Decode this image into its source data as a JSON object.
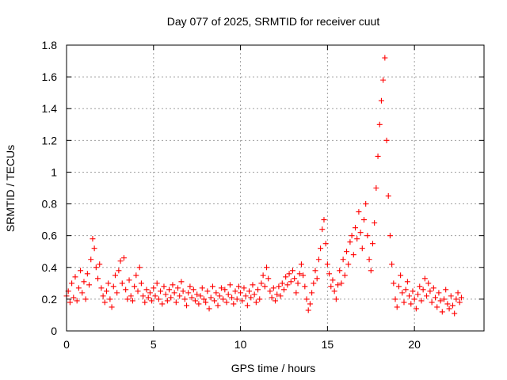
{
  "chart_data": {
    "type": "scatter",
    "title": "Day 077 of 2025, SRMTID for receiver cuut",
    "xlabel": "GPS time / hours",
    "ylabel": "SRMTID / TECUs",
    "xlim": [
      0,
      24
    ],
    "ylim": [
      0,
      1.8
    ],
    "xticks": [
      0,
      5,
      10,
      15,
      20
    ],
    "yticks": [
      0,
      0.2,
      0.4,
      0.6,
      0.8,
      1,
      1.2,
      1.4,
      1.6,
      1.8
    ],
    "xtick_labels": [
      "0",
      "5",
      "10",
      "15",
      "20"
    ],
    "ytick_labels": [
      "0",
      "0.2",
      "0.4",
      "0.6",
      "0.8",
      "1",
      "1.2",
      "1.4",
      "1.6",
      "1.8"
    ],
    "grid": true,
    "marker": "+",
    "color": "#ff0000",
    "series": [
      {
        "name": "SRMTID",
        "points": [
          [
            0.0,
            0.22
          ],
          [
            0.1,
            0.25
          ],
          [
            0.2,
            0.18
          ],
          [
            0.3,
            0.3
          ],
          [
            0.4,
            0.21
          ],
          [
            0.5,
            0.34
          ],
          [
            0.6,
            0.19
          ],
          [
            0.7,
            0.27
          ],
          [
            0.8,
            0.38
          ],
          [
            0.9,
            0.24
          ],
          [
            1.0,
            0.31
          ],
          [
            1.1,
            0.2
          ],
          [
            1.2,
            0.36
          ],
          [
            1.3,
            0.29
          ],
          [
            1.4,
            0.45
          ],
          [
            1.5,
            0.58
          ],
          [
            1.6,
            0.52
          ],
          [
            1.7,
            0.4
          ],
          [
            1.8,
            0.33
          ],
          [
            1.9,
            0.42
          ],
          [
            2.0,
            0.27
          ],
          [
            2.1,
            0.22
          ],
          [
            2.2,
            0.18
          ],
          [
            2.3,
            0.25
          ],
          [
            2.4,
            0.3
          ],
          [
            2.5,
            0.2
          ],
          [
            2.6,
            0.15
          ],
          [
            2.7,
            0.28
          ],
          [
            2.8,
            0.35
          ],
          [
            2.9,
            0.24
          ],
          [
            3.0,
            0.38
          ],
          [
            3.1,
            0.44
          ],
          [
            3.2,
            0.3
          ],
          [
            3.3,
            0.46
          ],
          [
            3.4,
            0.26
          ],
          [
            3.5,
            0.2
          ],
          [
            3.6,
            0.32
          ],
          [
            3.7,
            0.22
          ],
          [
            3.8,
            0.19
          ],
          [
            3.9,
            0.28
          ],
          [
            4.0,
            0.35
          ],
          [
            4.1,
            0.25
          ],
          [
            4.2,
            0.4
          ],
          [
            4.3,
            0.3
          ],
          [
            4.4,
            0.22
          ],
          [
            4.5,
            0.18
          ],
          [
            4.6,
            0.26
          ],
          [
            4.7,
            0.21
          ],
          [
            4.8,
            0.24
          ],
          [
            4.9,
            0.19
          ],
          [
            5.0,
            0.27
          ],
          [
            5.1,
            0.22
          ],
          [
            5.2,
            0.3
          ],
          [
            5.3,
            0.2
          ],
          [
            5.4,
            0.25
          ],
          [
            5.5,
            0.17
          ],
          [
            5.6,
            0.28
          ],
          [
            5.7,
            0.23
          ],
          [
            5.8,
            0.19
          ],
          [
            5.9,
            0.26
          ],
          [
            6.0,
            0.21
          ],
          [
            6.1,
            0.29
          ],
          [
            6.2,
            0.24
          ],
          [
            6.3,
            0.18
          ],
          [
            6.4,
            0.27
          ],
          [
            6.5,
            0.22
          ],
          [
            6.6,
            0.31
          ],
          [
            6.7,
            0.25
          ],
          [
            6.8,
            0.2
          ],
          [
            6.9,
            0.16
          ],
          [
            7.0,
            0.24
          ],
          [
            7.1,
            0.28
          ],
          [
            7.2,
            0.21
          ],
          [
            7.3,
            0.26
          ],
          [
            7.4,
            0.19
          ],
          [
            7.5,
            0.23
          ],
          [
            7.6,
            0.17
          ],
          [
            7.7,
            0.22
          ],
          [
            7.8,
            0.27
          ],
          [
            7.9,
            0.2
          ],
          [
            8.0,
            0.18
          ],
          [
            8.1,
            0.25
          ],
          [
            8.2,
            0.14
          ],
          [
            8.3,
            0.21
          ],
          [
            8.4,
            0.28
          ],
          [
            8.5,
            0.19
          ],
          [
            8.6,
            0.24
          ],
          [
            8.7,
            0.16
          ],
          [
            8.8,
            0.22
          ],
          [
            8.9,
            0.27
          ],
          [
            9.0,
            0.2
          ],
          [
            9.1,
            0.26
          ],
          [
            9.2,
            0.18
          ],
          [
            9.3,
            0.23
          ],
          [
            9.4,
            0.29
          ],
          [
            9.5,
            0.21
          ],
          [
            9.6,
            0.17
          ],
          [
            9.7,
            0.25
          ],
          [
            9.8,
            0.2
          ],
          [
            9.9,
            0.28
          ],
          [
            10.0,
            0.24
          ],
          [
            10.1,
            0.19
          ],
          [
            10.2,
            0.27
          ],
          [
            10.3,
            0.22
          ],
          [
            10.4,
            0.16
          ],
          [
            10.5,
            0.25
          ],
          [
            10.6,
            0.21
          ],
          [
            10.7,
            0.29
          ],
          [
            10.8,
            0.23
          ],
          [
            10.9,
            0.18
          ],
          [
            11.0,
            0.26
          ],
          [
            11.1,
            0.2
          ],
          [
            11.2,
            0.3
          ],
          [
            11.3,
            0.35
          ],
          [
            11.4,
            0.28
          ],
          [
            11.5,
            0.4
          ],
          [
            11.6,
            0.33
          ],
          [
            11.7,
            0.25
          ],
          [
            11.8,
            0.21
          ],
          [
            11.9,
            0.27
          ],
          [
            12.0,
            0.19
          ],
          [
            12.1,
            0.23
          ],
          [
            12.2,
            0.28
          ],
          [
            12.3,
            0.22
          ],
          [
            12.4,
            0.3
          ],
          [
            12.5,
            0.26
          ],
          [
            12.6,
            0.34
          ],
          [
            12.7,
            0.29
          ],
          [
            12.8,
            0.36
          ],
          [
            12.9,
            0.31
          ],
          [
            13.0,
            0.38
          ],
          [
            13.1,
            0.33
          ],
          [
            13.2,
            0.24
          ],
          [
            13.3,
            0.3
          ],
          [
            13.4,
            0.36
          ],
          [
            13.5,
            0.42
          ],
          [
            13.6,
            0.35
          ],
          [
            13.7,
            0.28
          ],
          [
            13.8,
            0.2
          ],
          [
            13.9,
            0.13
          ],
          [
            14.0,
            0.17
          ],
          [
            14.1,
            0.24
          ],
          [
            14.2,
            0.3
          ],
          [
            14.3,
            0.38
          ],
          [
            14.4,
            0.33
          ],
          [
            14.5,
            0.45
          ],
          [
            14.6,
            0.52
          ],
          [
            14.7,
            0.64
          ],
          [
            14.8,
            0.7
          ],
          [
            14.9,
            0.55
          ],
          [
            15.0,
            0.42
          ],
          [
            15.1,
            0.36
          ],
          [
            15.2,
            0.28
          ],
          [
            15.3,
            0.32
          ],
          [
            15.4,
            0.25
          ],
          [
            15.5,
            0.2
          ],
          [
            15.6,
            0.29
          ],
          [
            15.7,
            0.38
          ],
          [
            15.8,
            0.3
          ],
          [
            15.9,
            0.45
          ],
          [
            16.0,
            0.35
          ],
          [
            16.1,
            0.5
          ],
          [
            16.2,
            0.42
          ],
          [
            16.3,
            0.56
          ],
          [
            16.4,
            0.6
          ],
          [
            16.5,
            0.48
          ],
          [
            16.6,
            0.65
          ],
          [
            16.7,
            0.58
          ],
          [
            16.8,
            0.75
          ],
          [
            16.9,
            0.62
          ],
          [
            17.0,
            0.52
          ],
          [
            17.1,
            0.7
          ],
          [
            17.2,
            0.8
          ],
          [
            17.3,
            0.6
          ],
          [
            17.4,
            0.45
          ],
          [
            17.5,
            0.38
          ],
          [
            17.6,
            0.55
          ],
          [
            17.7,
            0.68
          ],
          [
            17.8,
            0.9
          ],
          [
            17.9,
            1.1
          ],
          [
            18.0,
            1.3
          ],
          [
            18.1,
            1.45
          ],
          [
            18.2,
            1.58
          ],
          [
            18.3,
            1.72
          ],
          [
            18.4,
            1.2
          ],
          [
            18.5,
            0.85
          ],
          [
            18.6,
            0.6
          ],
          [
            18.7,
            0.42
          ],
          [
            18.8,
            0.3
          ],
          [
            18.9,
            0.2
          ],
          [
            19.0,
            0.15
          ],
          [
            19.1,
            0.28
          ],
          [
            19.2,
            0.35
          ],
          [
            19.3,
            0.24
          ],
          [
            19.4,
            0.18
          ],
          [
            19.5,
            0.26
          ],
          [
            19.6,
            0.31
          ],
          [
            19.7,
            0.22
          ],
          [
            19.8,
            0.17
          ],
          [
            19.9,
            0.25
          ],
          [
            20.0,
            0.2
          ],
          [
            20.1,
            0.14
          ],
          [
            20.2,
            0.23
          ],
          [
            20.3,
            0.28
          ],
          [
            20.4,
            0.19
          ],
          [
            20.5,
            0.26
          ],
          [
            20.6,
            0.33
          ],
          [
            20.7,
            0.22
          ],
          [
            20.8,
            0.3
          ],
          [
            20.9,
            0.25
          ],
          [
            21.0,
            0.18
          ],
          [
            21.1,
            0.27
          ],
          [
            21.2,
            0.21
          ],
          [
            21.3,
            0.15
          ],
          [
            21.4,
            0.24
          ],
          [
            21.5,
            0.19
          ],
          [
            21.6,
            0.12
          ],
          [
            21.7,
            0.2
          ],
          [
            21.8,
            0.26
          ],
          [
            21.9,
            0.17
          ],
          [
            22.0,
            0.14
          ],
          [
            22.1,
            0.22
          ],
          [
            22.2,
            0.16
          ],
          [
            22.3,
            0.11
          ],
          [
            22.4,
            0.2
          ],
          [
            22.5,
            0.24
          ],
          [
            22.6,
            0.18
          ],
          [
            22.7,
            0.21
          ]
        ]
      }
    ]
  }
}
